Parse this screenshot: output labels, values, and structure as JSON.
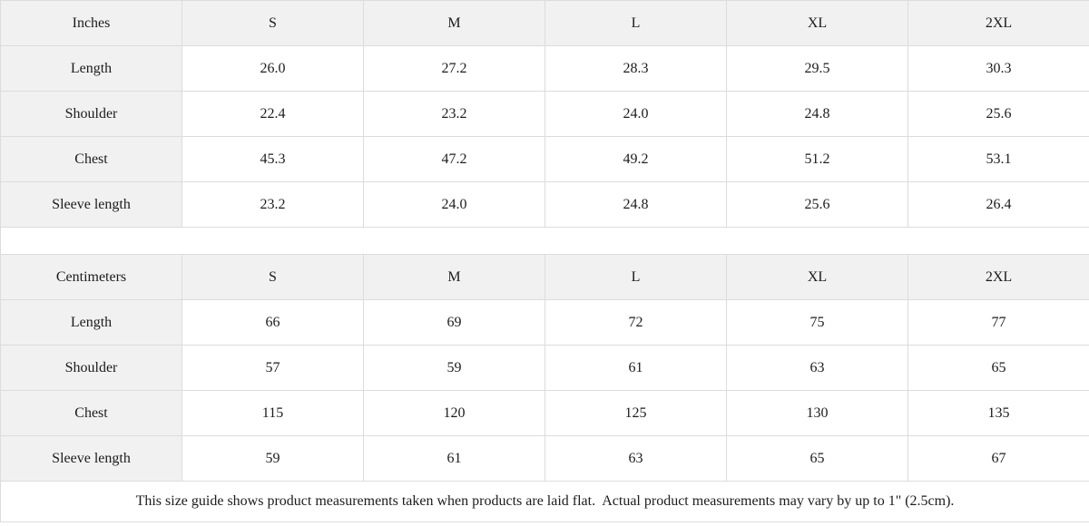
{
  "colors": {
    "header_bg": "#f1f1f1",
    "border": "#dcdcdc",
    "text": "#1c1c1c",
    "page_bg": "#ffffff"
  },
  "table": {
    "sections": [
      {
        "unit": "Inches",
        "sizes": [
          "S",
          "M",
          "L",
          "XL",
          "2XL"
        ],
        "rows": [
          {
            "label": "Length",
            "values": [
              "26.0",
              "27.2",
              "28.3",
              "29.5",
              "30.3"
            ]
          },
          {
            "label": "Shoulder",
            "values": [
              "22.4",
              "23.2",
              "24.0",
              "24.8",
              "25.6"
            ]
          },
          {
            "label": "Chest",
            "values": [
              "45.3",
              "47.2",
              "49.2",
              "51.2",
              "53.1"
            ]
          },
          {
            "label": "Sleeve length",
            "values": [
              "23.2",
              "24.0",
              "24.8",
              "25.6",
              "26.4"
            ]
          }
        ]
      },
      {
        "unit": "Centimeters",
        "sizes": [
          "S",
          "M",
          "L",
          "XL",
          "2XL"
        ],
        "rows": [
          {
            "label": "Length",
            "values": [
              "66",
              "69",
              "72",
              "75",
              "77"
            ]
          },
          {
            "label": "Shoulder",
            "values": [
              "57",
              "59",
              "61",
              "63",
              "65"
            ]
          },
          {
            "label": "Chest",
            "values": [
              "115",
              "120",
              "125",
              "130",
              "135"
            ]
          },
          {
            "label": "Sleeve length",
            "values": [
              "59",
              "61",
              "63",
              "65",
              "67"
            ]
          }
        ]
      }
    ],
    "note": "This size guide shows product measurements taken when products are laid flat.  Actual product measurements may vary by up to 1\" (2.5cm)."
  }
}
